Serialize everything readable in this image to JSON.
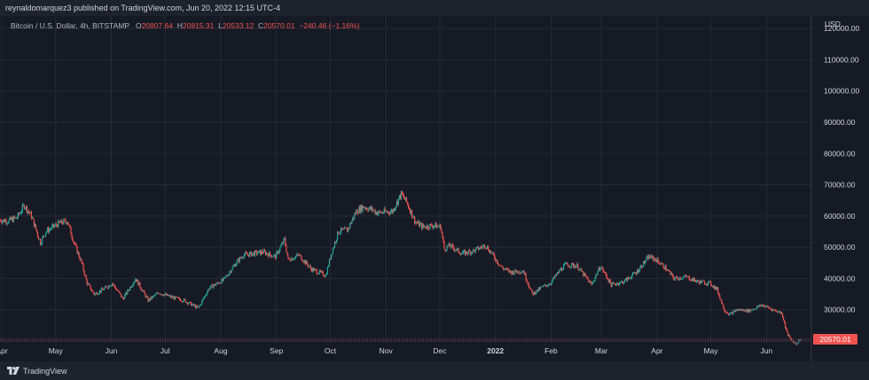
{
  "topbar": {
    "text": "reynaldomarquez3 published on TradingView.com, Jun 20, 2022 12:15 UTC-4"
  },
  "legend": {
    "symbol": "Bitcoin / U.S. Dollar, 4h, BITSTAMP",
    "o_label": "O",
    "o_value": "20807.64",
    "h_label": "H",
    "h_value": "20815.31",
    "l_label": "L",
    "l_value": "20533.12",
    "c_label": "C",
    "c_value": "20570.01",
    "change": "−240.46 (−1.16%)"
  },
  "footer": {
    "brand": "TradingView"
  },
  "colors": {
    "up": "#26a69a",
    "down": "#ef5350",
    "background": "#161a25",
    "grid": "#252a36",
    "price_tag": "#ef5350"
  },
  "chart_data": {
    "type": "candlestick",
    "title": "Bitcoin / U.S. Dollar, 4h, BITSTAMP",
    "ylabel": "USD",
    "ylim": [
      20000,
      124000
    ],
    "y_ticks": [
      30000,
      40000,
      50000,
      60000,
      70000,
      80000,
      90000,
      100000,
      110000,
      120000
    ],
    "y_tick_labels": [
      "30000.00",
      "40000.00",
      "50000.00",
      "60000.00",
      "70000.00",
      "80000.00",
      "90000.00",
      "100000.00",
      "110000.00",
      "120000.00"
    ],
    "x_ticks": [
      {
        "date": "2021-04-01",
        "label": "Apr"
      },
      {
        "date": "2021-05-01",
        "label": "May"
      },
      {
        "date": "2021-06-01",
        "label": "Jun"
      },
      {
        "date": "2021-07-01",
        "label": "Jul"
      },
      {
        "date": "2021-08-01",
        "label": "Aug"
      },
      {
        "date": "2021-09-01",
        "label": "Sep"
      },
      {
        "date": "2021-10-01",
        "label": "Oct"
      },
      {
        "date": "2021-11-01",
        "label": "Nov"
      },
      {
        "date": "2021-12-01",
        "label": "Dec"
      },
      {
        "date": "2022-01-01",
        "label": "2022"
      },
      {
        "date": "2022-02-01",
        "label": "Feb"
      },
      {
        "date": "2022-03-01",
        "label": "Mar"
      },
      {
        "date": "2022-04-01",
        "label": "Apr"
      },
      {
        "date": "2022-05-01",
        "label": "May"
      },
      {
        "date": "2022-06-01",
        "label": "Jun"
      }
    ],
    "last_price": 20570.01,
    "last_price_label": "20570.01",
    "series": [
      {
        "x": [
          "2021-03-31",
          "2021-04-05",
          "2021-04-10",
          "2021-04-14",
          "2021-04-18",
          "2021-04-23",
          "2021-04-26",
          "2021-05-03",
          "2021-05-08",
          "2021-05-12",
          "2021-05-16",
          "2021-05-19",
          "2021-05-23",
          "2021-05-28",
          "2021-06-02",
          "2021-06-08",
          "2021-06-15",
          "2021-06-22",
          "2021-06-28",
          "2021-07-05",
          "2021-07-12",
          "2021-07-20",
          "2021-07-26",
          "2021-08-03",
          "2021-08-10",
          "2021-08-14",
          "2021-08-20",
          "2021-08-25",
          "2021-09-01",
          "2021-09-06",
          "2021-09-08",
          "2021-09-14",
          "2021-09-21",
          "2021-09-29",
          "2021-10-02",
          "2021-10-06",
          "2021-10-11",
          "2021-10-16",
          "2021-10-20",
          "2021-10-25",
          "2021-10-28",
          "2021-11-05",
          "2021-11-10",
          "2021-11-13",
          "2021-11-18",
          "2021-11-22",
          "2021-11-28",
          "2021-12-02",
          "2021-12-04",
          "2021-12-07",
          "2021-12-14",
          "2021-12-21",
          "2021-12-27",
          "2022-01-05",
          "2022-01-10",
          "2022-01-17",
          "2022-01-22",
          "2022-01-27",
          "2022-02-01",
          "2022-02-07",
          "2022-02-10",
          "2022-02-16",
          "2022-02-24",
          "2022-03-01",
          "2022-03-07",
          "2022-03-14",
          "2022-03-21",
          "2022-03-28",
          "2022-04-01",
          "2022-04-06",
          "2022-04-11",
          "2022-04-18",
          "2022-04-24",
          "2022-05-01",
          "2022-05-05",
          "2022-05-09",
          "2022-05-12",
          "2022-05-16",
          "2022-05-23",
          "2022-05-30",
          "2022-06-06",
          "2022-06-10",
          "2022-06-13",
          "2022-06-15",
          "2022-06-18",
          "2022-06-20"
        ],
        "y": [
          58800,
          58400,
          59500,
          63500,
          60000,
          51500,
          55000,
          57500,
          58500,
          51000,
          45000,
          38500,
          35000,
          36500,
          38500,
          33500,
          40000,
          33000,
          35500,
          34000,
          33000,
          30500,
          37000,
          39500,
          45000,
          47500,
          48000,
          48500,
          47000,
          52500,
          46000,
          47500,
          43000,
          41000,
          47800,
          55000,
          55500,
          61500,
          63000,
          62000,
          61000,
          61500,
          67000,
          64500,
          58000,
          56500,
          57000,
          56500,
          49500,
          50500,
          48000,
          49000,
          50700,
          43500,
          42000,
          42500,
          35000,
          37000,
          38500,
          43000,
          44500,
          44000,
          38000,
          44000,
          38000,
          39000,
          42000,
          47000,
          46000,
          43500,
          40000,
          40500,
          39000,
          38500,
          36500,
          30000,
          28500,
          30000,
          29700,
          31500,
          29800,
          29000,
          22500,
          20500,
          19000,
          20570
        ]
      }
    ]
  }
}
